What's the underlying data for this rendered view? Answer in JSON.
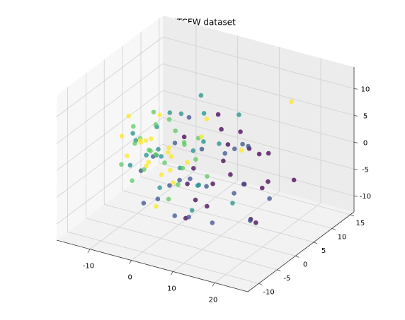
{
  "chart_data": {
    "type": "scatter3d",
    "title": "IIITCFW dataset",
    "xlim": [
      -18,
      28
    ],
    "ylim": [
      -13,
      16
    ],
    "zlim": [
      -13,
      14
    ],
    "xticks": [
      -10,
      0,
      10,
      20
    ],
    "yticks": [
      -10,
      -5,
      0,
      5,
      10,
      15
    ],
    "zticks": [
      -10,
      -5,
      0,
      5,
      10
    ],
    "grid": true,
    "series": [
      {
        "color": "#440154",
        "x": [
          10,
          15,
          5,
          20,
          12,
          8,
          18,
          3,
          22,
          14,
          6,
          16,
          9,
          25,
          11,
          4,
          19,
          13,
          7,
          17,
          2,
          21
        ],
        "y": [
          2,
          -3,
          5,
          0,
          -6,
          3,
          4,
          -2,
          -4,
          6,
          -5,
          1,
          -1,
          3,
          -8,
          7,
          -2,
          2,
          -4,
          5,
          0,
          -6
        ],
        "z": [
          3,
          1,
          6,
          -2,
          -4,
          -1,
          2,
          5,
          -6,
          0,
          -8,
          4,
          -3,
          -1,
          -2,
          2,
          -7,
          6,
          1,
          -4,
          -5,
          2
        ]
      },
      {
        "color": "#3b528b",
        "x": [
          0,
          5,
          12,
          -5,
          8,
          15,
          -2,
          10,
          3,
          18,
          -8,
          6,
          14,
          1,
          -3,
          20,
          9,
          -6,
          11,
          4,
          16,
          -1
        ],
        "y": [
          3,
          -3,
          4,
          -4,
          0,
          -2,
          5,
          6,
          -6,
          -1,
          2,
          -8,
          3,
          -1,
          -7,
          2,
          -4,
          1,
          -5,
          8,
          -3,
          0
        ],
        "z": [
          -6,
          -9,
          -5,
          -8,
          -11,
          -3,
          4,
          1,
          -2,
          -8,
          -3,
          -6,
          3,
          -4,
          0,
          -5,
          5,
          -10,
          -1,
          -3,
          6,
          2
        ]
      },
      {
        "color": "#21918c",
        "x": [
          -5,
          -8,
          2,
          -3,
          5,
          -10,
          0,
          8,
          -6,
          3,
          -12,
          10,
          -2,
          6,
          -9,
          1,
          12,
          -4,
          4,
          -7,
          7,
          -1
        ],
        "y": [
          0,
          3,
          -2,
          4,
          1,
          -2,
          6,
          -4,
          -5,
          2,
          1,
          5,
          -3,
          0,
          4,
          -6,
          1,
          2,
          -1,
          -1,
          3,
          5
        ],
        "z": [
          0,
          2,
          -1,
          5,
          3,
          -3,
          8,
          -2,
          4,
          -6,
          1,
          7,
          -5,
          9,
          -4,
          3,
          -7,
          6,
          -9,
          -1,
          2,
          -2
        ]
      },
      {
        "color": "#5ec962",
        "x": [
          -6,
          -9,
          -3,
          -11,
          0,
          -7,
          -4,
          2,
          -13,
          -5,
          1,
          -8,
          4,
          -2,
          -10,
          -6,
          3,
          -12,
          0,
          -4,
          5,
          -7
        ],
        "y": [
          -1,
          2,
          -3,
          0,
          1,
          4,
          -5,
          3,
          -1,
          3,
          -4,
          -3,
          0,
          2,
          5,
          -6,
          -2,
          3,
          -1,
          6,
          2,
          1
        ],
        "z": [
          0,
          -2,
          1,
          3,
          -3,
          -5,
          -1,
          2,
          -4,
          4,
          -6,
          2,
          0,
          -7,
          1,
          -3,
          4,
          -1,
          5,
          -2,
          -4,
          6
        ]
      },
      {
        "color": "#fde725",
        "x": [
          -8,
          -5,
          -11,
          -3,
          -9,
          0,
          -6,
          -13,
          2,
          -4,
          -10,
          -7,
          1,
          -2,
          -12,
          4,
          -6,
          20,
          -1,
          -9,
          3,
          15
        ],
        "y": [
          0,
          -2,
          2,
          1,
          -4,
          -3,
          4,
          1,
          0,
          -6,
          3,
          -1,
          5,
          -4,
          -2,
          3,
          2,
          8,
          -1,
          5,
          -5,
          0
        ],
        "z": [
          1,
          3,
          -1,
          -4,
          0,
          2,
          -2,
          4,
          -1,
          5,
          -5,
          -3,
          1,
          -8,
          2,
          6,
          -6,
          10,
          0,
          3,
          -2,
          4
        ]
      }
    ]
  }
}
